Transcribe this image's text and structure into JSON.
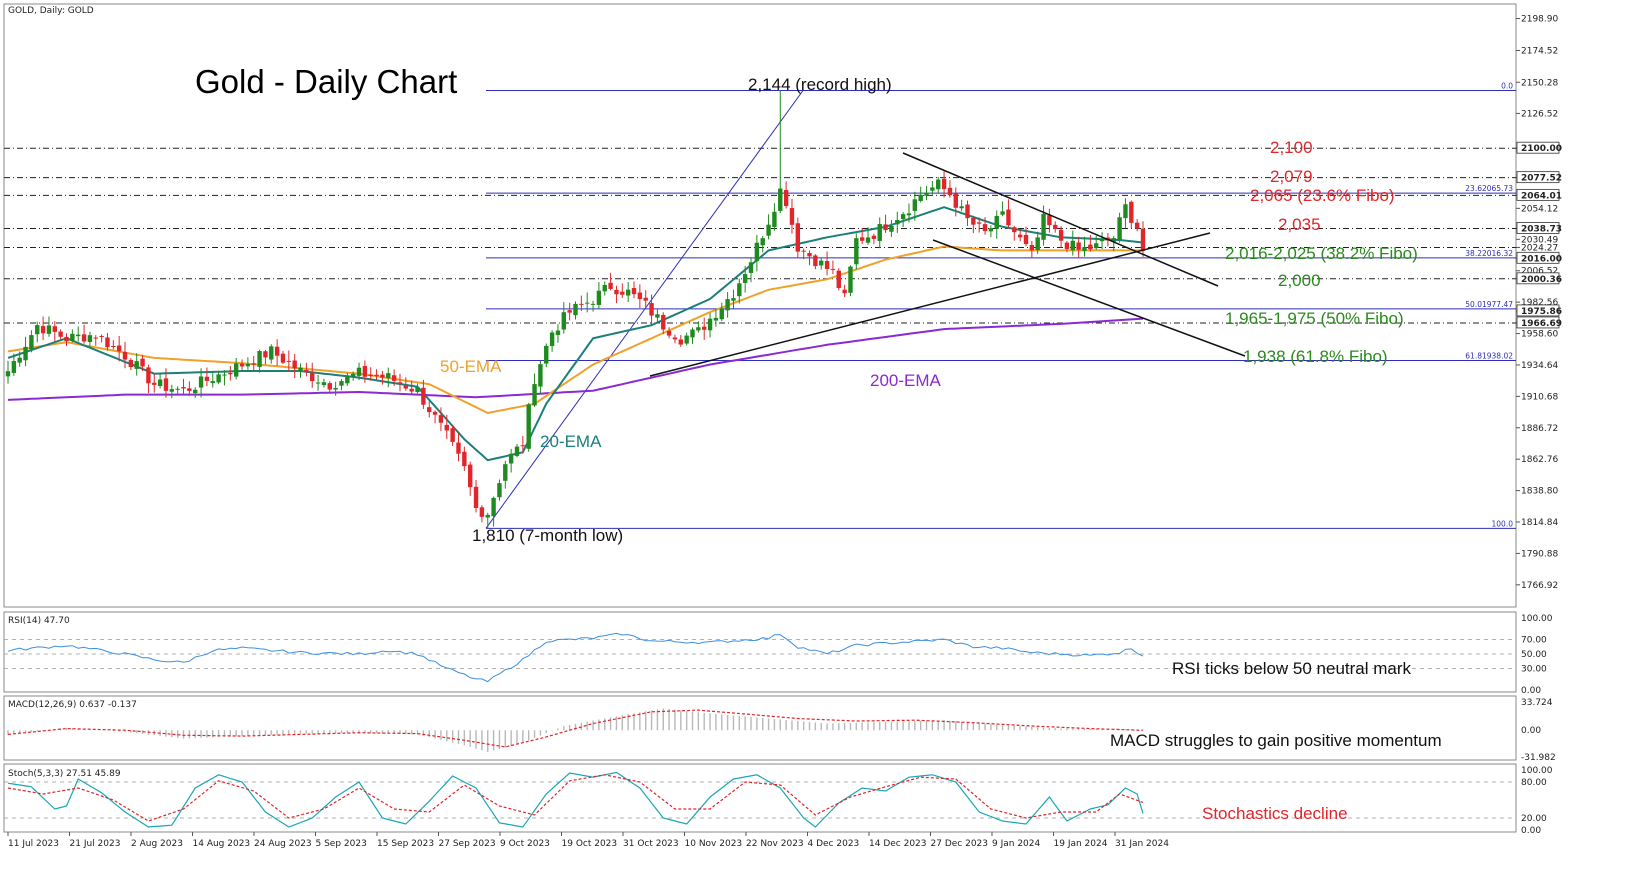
{
  "symbol_header": "GOLD, Daily:  GOLD",
  "title": "Gold - Daily Chart",
  "colors": {
    "bull": "#1f8a1f",
    "bear": "#e0262b",
    "ema20": "#1c7f7a",
    "ema50": "#f0a12a",
    "ema200": "#8a2ad1",
    "fibo": "#2e2eb8",
    "red_text": "#e0262b",
    "green_text": "#2b8a1e",
    "rsi": "#3d8fe0",
    "stoch_main": "#19a7b3",
    "stoch_signal": "#e0262b"
  },
  "chart_data": [
    {
      "type": "candlestick",
      "name": "GOLD Daily",
      "ylim": [
        1750,
        2210
      ],
      "y_ticks": [
        "2198.90",
        "2174.52",
        "2150.28",
        "2126.52",
        "2100.00",
        "2077.52",
        "2064.01",
        "2054.12",
        "2038.73",
        "2030.49",
        "2024.27",
        "2016.00",
        "2006.52",
        "2000.36",
        "1982.56",
        "1975.86",
        "1966.69",
        "1958.60",
        "1934.64",
        "1910.68",
        "1886.72",
        "1862.76",
        "1838.80",
        "1814.84",
        "1790.88",
        "1766.92"
      ],
      "x_ticks": [
        "11 Jul 2023",
        "21 Jul 2023",
        "2 Aug 2023",
        "14 Aug 2023",
        "24 Aug 2023",
        "5 Sep 2023",
        "15 Sep 2023",
        "27 Sep 2023",
        "9 Oct 2023",
        "19 Oct 2023",
        "31 Oct 2023",
        "10 Nov 2023",
        "22 Nov 2023",
        "4 Dec 2023",
        "14 Dec 2023",
        "27 Dec 2023",
        "9 Jan 2024",
        "19 Jan 2024",
        "31 Jan 2024"
      ],
      "close_anchors": [
        [
          0,
          1930
        ],
        [
          5,
          1965
        ],
        [
          10,
          1955
        ],
        [
          15,
          1958
        ],
        [
          20,
          1942
        ],
        [
          25,
          1920
        ],
        [
          30,
          1915
        ],
        [
          35,
          1925
        ],
        [
          40,
          1935
        ],
        [
          45,
          1945
        ],
        [
          50,
          1930
        ],
        [
          55,
          1920
        ],
        [
          60,
          1928
        ],
        [
          65,
          1925
        ],
        [
          70,
          1915
        ],
        [
          75,
          1880
        ],
        [
          78,
          1855
        ],
        [
          80,
          1825
        ],
        [
          82,
          1822
        ],
        [
          85,
          1860
        ],
        [
          88,
          1875
        ],
        [
          90,
          1925
        ],
        [
          93,
          1960
        ],
        [
          96,
          1975
        ],
        [
          100,
          1985
        ],
        [
          103,
          1995
        ],
        [
          106,
          1990
        ],
        [
          109,
          1980
        ],
        [
          112,
          1965
        ],
        [
          115,
          1955
        ],
        [
          118,
          1960
        ],
        [
          121,
          1975
        ],
        [
          124,
          1990
        ],
        [
          127,
          2015
        ],
        [
          130,
          2045
        ],
        [
          132,
          2068
        ],
        [
          133,
          2060
        ],
        [
          135,
          2025
        ],
        [
          138,
          2015
        ],
        [
          141,
          2005
        ],
        [
          143,
          1985
        ],
        [
          145,
          2030
        ],
        [
          148,
          2035
        ],
        [
          151,
          2045
        ],
        [
          154,
          2055
        ],
        [
          156,
          2065
        ],
        [
          159,
          2072
        ],
        [
          161,
          2065
        ],
        [
          164,
          2045
        ],
        [
          167,
          2035
        ],
        [
          170,
          2048
        ],
        [
          173,
          2030
        ],
        [
          175,
          2018
        ],
        [
          177,
          2045
        ],
        [
          180,
          2030
        ],
        [
          183,
          2022
        ],
        [
          186,
          2025
        ],
        [
          189,
          2032
        ],
        [
          191,
          2055
        ],
        [
          193,
          2040
        ],
        [
          194,
          2022
        ]
      ],
      "ema_20_anchors": [
        [
          0,
          1940
        ],
        [
          10,
          1955
        ],
        [
          25,
          1928
        ],
        [
          40,
          1930
        ],
        [
          50,
          1930
        ],
        [
          60,
          1925
        ],
        [
          70,
          1918
        ],
        [
          78,
          1878
        ],
        [
          82,
          1862
        ],
        [
          88,
          1868
        ],
        [
          92,
          1905
        ],
        [
          100,
          1955
        ],
        [
          110,
          1965
        ],
        [
          120,
          1985
        ],
        [
          130,
          2022
        ],
        [
          140,
          2032
        ],
        [
          150,
          2040
        ],
        [
          160,
          2055
        ],
        [
          170,
          2040
        ],
        [
          180,
          2032
        ],
        [
          190,
          2030
        ],
        [
          194,
          2028
        ]
      ],
      "ema_50_anchors": [
        [
          0,
          1945
        ],
        [
          10,
          1952
        ],
        [
          25,
          1940
        ],
        [
          40,
          1936
        ],
        [
          60,
          1928
        ],
        [
          72,
          1920
        ],
        [
          82,
          1898
        ],
        [
          90,
          1905
        ],
        [
          100,
          1935
        ],
        [
          110,
          1955
        ],
        [
          120,
          1975
        ],
        [
          130,
          1992
        ],
        [
          140,
          2000
        ],
        [
          150,
          2015
        ],
        [
          160,
          2025
        ],
        [
          170,
          2022
        ],
        [
          180,
          2022
        ],
        [
          194,
          2022
        ]
      ],
      "ema_200_anchors": [
        [
          0,
          1908
        ],
        [
          20,
          1912
        ],
        [
          40,
          1912
        ],
        [
          60,
          1914
        ],
        [
          80,
          1910
        ],
        [
          100,
          1915
        ],
        [
          120,
          1935
        ],
        [
          140,
          1950
        ],
        [
          160,
          1962
        ],
        [
          180,
          1966
        ],
        [
          194,
          1970
        ]
      ],
      "annotations": {
        "high_label": "2,144 (record high)",
        "low_label": "1,810 (7-month low)",
        "ema50_label": "50-EMA",
        "ema20_label": "20-EMA",
        "ema200_label": "200-EMA",
        "level_2100": "2,100",
        "level_2079": "2,079",
        "level_2065": "2,065 (23.6% Fibo)",
        "level_2035": "2,035",
        "level_2016": "2,016-2,025 (38.2% Fibo)",
        "level_2000": "2,000",
        "level_1965": "1,965-1,975 (50% Fibo)",
        "level_1938": "1,938 (61.8% Fibo)"
      },
      "fibo_labels": [
        "0.0",
        "23.62065.73",
        "38.22016.32",
        "50.01977.47",
        "61.81938.02",
        "100.0"
      ]
    },
    {
      "type": "line",
      "name": "RSI(14)",
      "header": "RSI(14) 47.70",
      "ylim": [
        0,
        100
      ],
      "y_ticks": [
        "100.00",
        "70.00",
        "50.00",
        "30.00",
        "0.00"
      ],
      "anchors": [
        [
          0,
          55
        ],
        [
          10,
          62
        ],
        [
          20,
          50
        ],
        [
          25,
          42
        ],
        [
          30,
          38
        ],
        [
          35,
          55
        ],
        [
          40,
          58
        ],
        [
          50,
          52
        ],
        [
          60,
          50
        ],
        [
          65,
          55
        ],
        [
          70,
          50
        ],
        [
          75,
          30
        ],
        [
          80,
          15
        ],
        [
          82,
          12
        ],
        [
          88,
          42
        ],
        [
          92,
          68
        ],
        [
          100,
          72
        ],
        [
          105,
          78
        ],
        [
          110,
          68
        ],
        [
          120,
          66
        ],
        [
          130,
          72
        ],
        [
          132,
          78
        ],
        [
          135,
          60
        ],
        [
          140,
          50
        ],
        [
          145,
          62
        ],
        [
          150,
          65
        ],
        [
          160,
          70
        ],
        [
          165,
          60
        ],
        [
          170,
          58
        ],
        [
          175,
          52
        ],
        [
          180,
          50
        ],
        [
          185,
          48
        ],
        [
          190,
          52
        ],
        [
          192,
          58
        ],
        [
          194,
          47.7
        ]
      ],
      "note": "RSI ticks below 50 neutral mark"
    },
    {
      "type": "bar+line",
      "name": "MACD(12,26,9)",
      "header": "MACD(12,26,9) 0.637 -0.137",
      "ylim": [
        -31.982,
        33.724
      ],
      "y_ticks": [
        "33.724",
        "0.00",
        "-31.982"
      ],
      "hist_anchors": [
        [
          0,
          -6
        ],
        [
          10,
          3
        ],
        [
          20,
          -2
        ],
        [
          30,
          -10
        ],
        [
          40,
          -7
        ],
        [
          50,
          -4
        ],
        [
          60,
          -3
        ],
        [
          70,
          -5
        ],
        [
          78,
          -18
        ],
        [
          82,
          -26
        ],
        [
          88,
          -15
        ],
        [
          95,
          5
        ],
        [
          105,
          18
        ],
        [
          112,
          26
        ],
        [
          120,
          20
        ],
        [
          130,
          14
        ],
        [
          140,
          8
        ],
        [
          150,
          10
        ],
        [
          160,
          12
        ],
        [
          170,
          6
        ],
        [
          180,
          2
        ],
        [
          190,
          1.5
        ],
        [
          194,
          0.64
        ]
      ],
      "signal_anchors": [
        [
          0,
          -5
        ],
        [
          10,
          2
        ],
        [
          20,
          0
        ],
        [
          30,
          -6
        ],
        [
          40,
          -7
        ],
        [
          50,
          -5
        ],
        [
          60,
          -3
        ],
        [
          70,
          -4
        ],
        [
          78,
          -12
        ],
        [
          85,
          -20
        ],
        [
          92,
          -8
        ],
        [
          100,
          8
        ],
        [
          110,
          22
        ],
        [
          118,
          24
        ],
        [
          125,
          20
        ],
        [
          135,
          14
        ],
        [
          145,
          11
        ],
        [
          155,
          12
        ],
        [
          165,
          9
        ],
        [
          175,
          5
        ],
        [
          185,
          2
        ],
        [
          194,
          -0.137
        ]
      ],
      "note": "MACD struggles to gain positive momentum"
    },
    {
      "type": "line",
      "name": "Stoch(5,3,3)",
      "header": "Stoch(5,3,3) 27.51 45.89",
      "ylim": [
        0,
        100
      ],
      "y_ticks": [
        "100.00",
        "80.00",
        "20.00",
        "0.00"
      ],
      "main_anchors": [
        [
          0,
          78
        ],
        [
          4,
          72
        ],
        [
          8,
          35
        ],
        [
          10,
          40
        ],
        [
          12,
          85
        ],
        [
          16,
          62
        ],
        [
          20,
          30
        ],
        [
          24,
          5
        ],
        [
          28,
          8
        ],
        [
          32,
          70
        ],
        [
          36,
          92
        ],
        [
          40,
          80
        ],
        [
          44,
          30
        ],
        [
          48,
          5
        ],
        [
          52,
          20
        ],
        [
          56,
          55
        ],
        [
          60,
          80
        ],
        [
          64,
          20
        ],
        [
          68,
          10
        ],
        [
          72,
          48
        ],
        [
          76,
          90
        ],
        [
          80,
          70
        ],
        [
          84,
          12
        ],
        [
          88,
          5
        ],
        [
          92,
          60
        ],
        [
          96,
          95
        ],
        [
          100,
          88
        ],
        [
          104,
          96
        ],
        [
          108,
          70
        ],
        [
          112,
          20
        ],
        [
          116,
          10
        ],
        [
          120,
          55
        ],
        [
          124,
          85
        ],
        [
          128,
          92
        ],
        [
          132,
          70
        ],
        [
          136,
          20
        ],
        [
          138,
          5
        ],
        [
          142,
          45
        ],
        [
          146,
          70
        ],
        [
          150,
          65
        ],
        [
          154,
          88
        ],
        [
          158,
          92
        ],
        [
          162,
          80
        ],
        [
          166,
          30
        ],
        [
          170,
          15
        ],
        [
          174,
          10
        ],
        [
          178,
          55
        ],
        [
          181,
          15
        ],
        [
          185,
          35
        ],
        [
          188,
          42
        ],
        [
          191,
          70
        ],
        [
          193,
          60
        ],
        [
          194,
          27.51
        ]
      ],
      "signal_anchors": [
        [
          0,
          70
        ],
        [
          6,
          60
        ],
        [
          12,
          70
        ],
        [
          18,
          50
        ],
        [
          24,
          15
        ],
        [
          30,
          35
        ],
        [
          36,
          82
        ],
        [
          42,
          65
        ],
        [
          48,
          20
        ],
        [
          54,
          35
        ],
        [
          60,
          70
        ],
        [
          66,
          35
        ],
        [
          72,
          30
        ],
        [
          78,
          75
        ],
        [
          84,
          40
        ],
        [
          90,
          25
        ],
        [
          96,
          82
        ],
        [
          102,
          92
        ],
        [
          108,
          80
        ],
        [
          114,
          35
        ],
        [
          120,
          35
        ],
        [
          126,
          80
        ],
        [
          132,
          75
        ],
        [
          138,
          25
        ],
        [
          144,
          55
        ],
        [
          150,
          72
        ],
        [
          156,
          88
        ],
        [
          162,
          85
        ],
        [
          168,
          35
        ],
        [
          174,
          20
        ],
        [
          180,
          30
        ],
        [
          186,
          30
        ],
        [
          190,
          60
        ],
        [
          194,
          45.89
        ]
      ],
      "note": "Stochastics decline"
    }
  ]
}
